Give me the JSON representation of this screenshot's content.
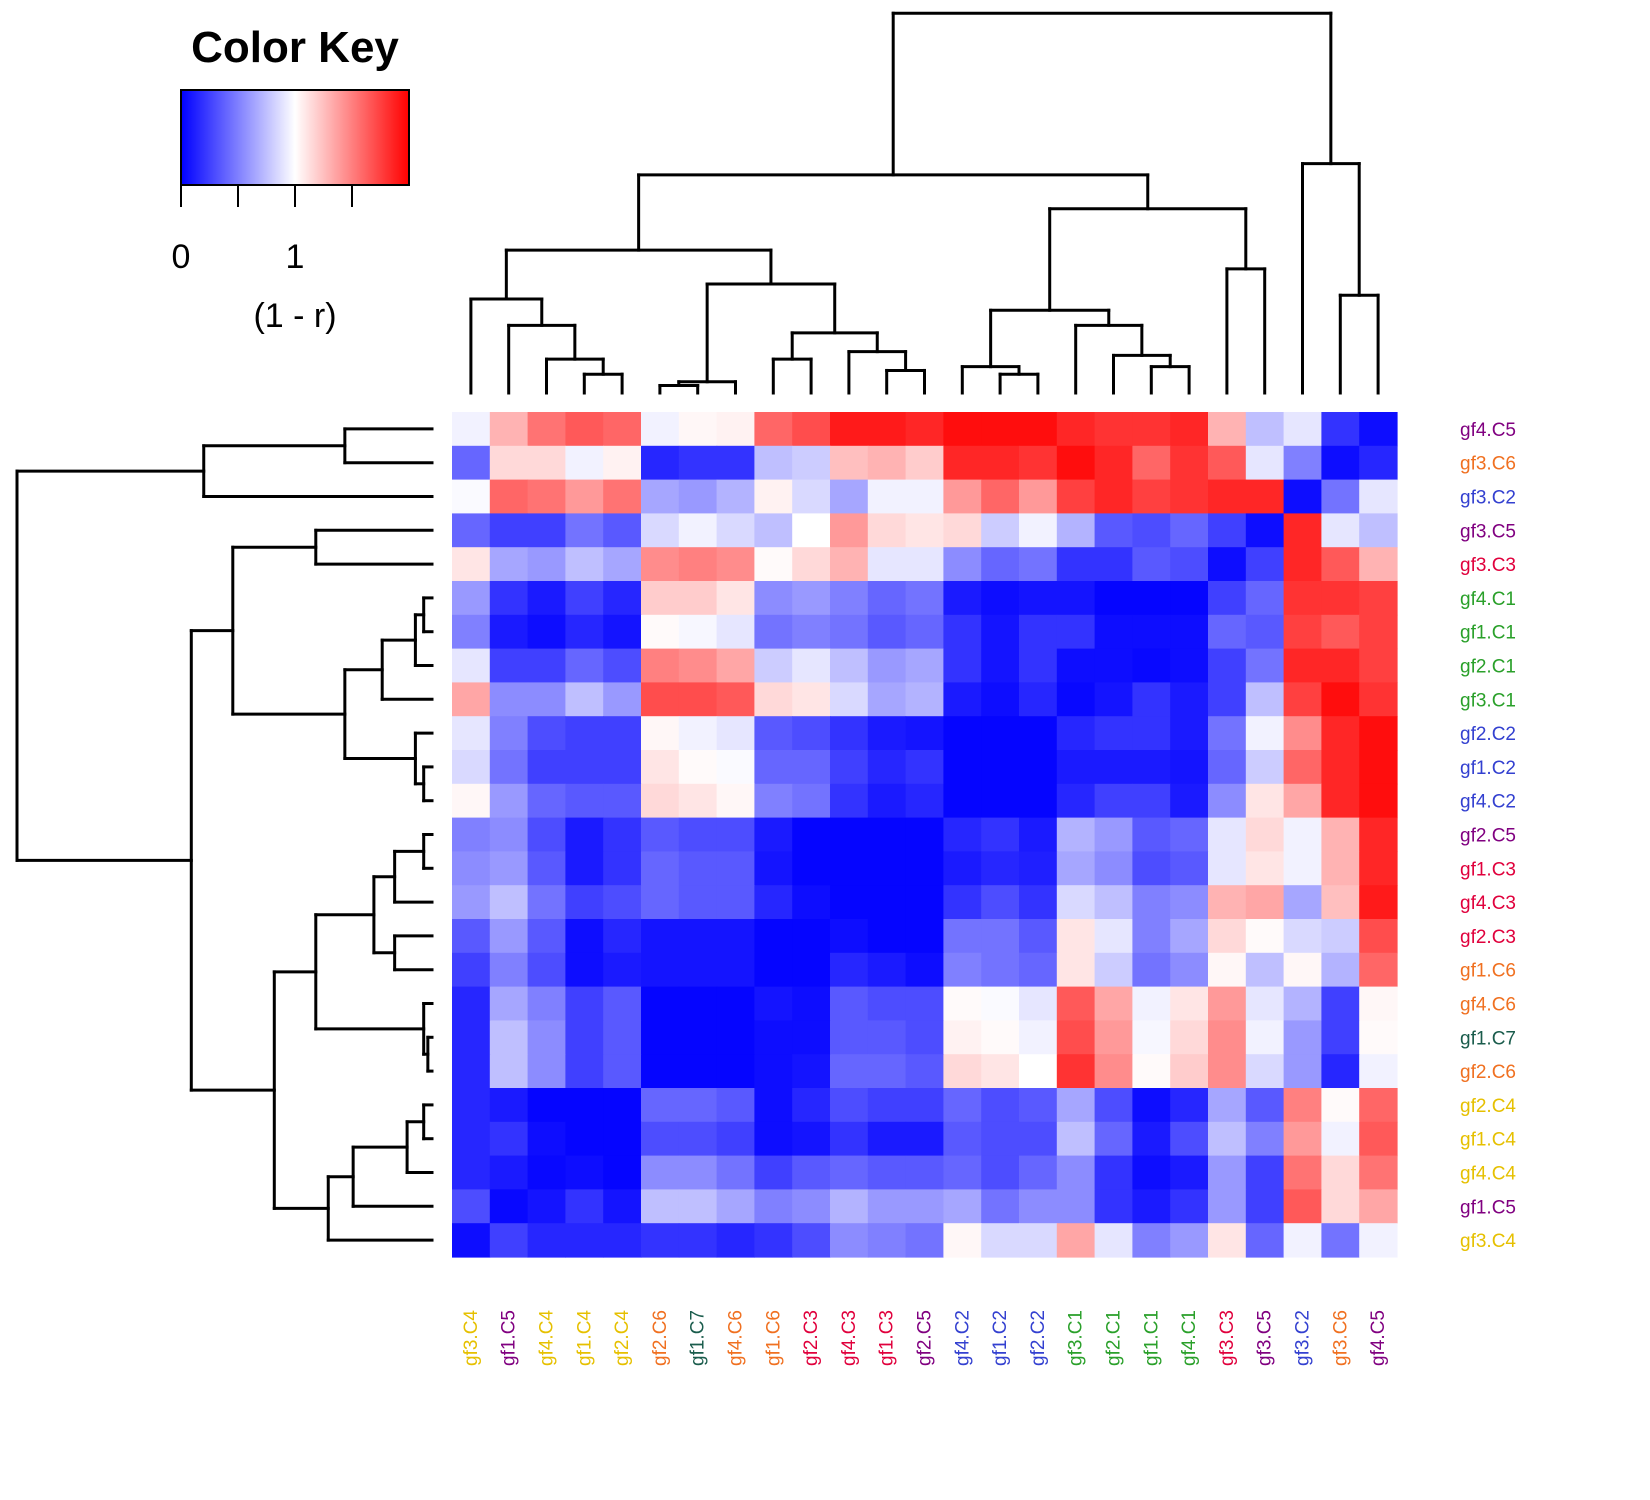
{
  "chart_data": {
    "type": "heatmap",
    "title": "",
    "color_key": {
      "title": "Color Key",
      "label": "(1 - r)",
      "tick_labels": [
        "0",
        "1"
      ],
      "range": [
        0,
        2
      ],
      "colors": [
        "#0000ff",
        "#ffffff",
        "#ff0000"
      ],
      "tick_values": [
        0,
        0.5,
        1,
        1.5
      ]
    },
    "rows": [
      "gf4.C5",
      "gf3.C6",
      "gf3.C2",
      "gf3.C5",
      "gf3.C3",
      "gf4.C1",
      "gf1.C1",
      "gf2.C1",
      "gf3.C1",
      "gf2.C2",
      "gf1.C2",
      "gf4.C2",
      "gf2.C5",
      "gf1.C3",
      "gf4.C3",
      "gf2.C3",
      "gf1.C6",
      "gf4.C6",
      "gf1.C7",
      "gf2.C6",
      "gf2.C4",
      "gf1.C4",
      "gf4.C4",
      "gf1.C5",
      "gf3.C4"
    ],
    "columns": [
      "gf3.C4",
      "gf1.C5",
      "gf4.C4",
      "gf1.C4",
      "gf2.C4",
      "gf2.C6",
      "gf1.C7",
      "gf4.C6",
      "gf1.C6",
      "gf2.C3",
      "gf4.C3",
      "gf1.C3",
      "gf2.C5",
      "gf4.C2",
      "gf1.C2",
      "gf2.C2",
      "gf3.C1",
      "gf2.C1",
      "gf1.C1",
      "gf4.C1",
      "gf3.C3",
      "gf3.C5",
      "gf3.C2",
      "gf3.C6",
      "gf4.C5"
    ],
    "label_colors": {
      "gf4.C5": "#800080",
      "gf3.C6": "#f07020",
      "gf3.C2": "#3340d0",
      "gf3.C5": "#800080",
      "gf3.C3": "#e0003c",
      "gf4.C1": "#2aa02a",
      "gf1.C1": "#2aa02a",
      "gf2.C1": "#2aa02a",
      "gf3.C1": "#2aa02a",
      "gf2.C2": "#3340d0",
      "gf1.C2": "#3340d0",
      "gf4.C2": "#3340d0",
      "gf2.C5": "#800080",
      "gf1.C3": "#e0003c",
      "gf4.C3": "#e0003c",
      "gf2.C3": "#e0003c",
      "gf1.C6": "#f07020",
      "gf4.C6": "#f07020",
      "gf1.C7": "#1a5c4c",
      "gf2.C6": "#f07020",
      "gf2.C4": "#e6c000",
      "gf1.C4": "#e6c000",
      "gf4.C4": "#e6c000",
      "gf1.C5": "#800080",
      "gf3.C4": "#e6c000"
    },
    "values": [
      [
        0.95,
        1.3,
        1.55,
        1.65,
        1.6,
        0.95,
        1.03,
        1.05,
        1.6,
        1.7,
        1.9,
        1.9,
        1.85,
        1.95,
        1.95,
        1.95,
        1.85,
        1.8,
        1.8,
        1.85,
        1.3,
        0.75,
        0.9,
        0.2,
        0.05
      ],
      [
        0.4,
        1.15,
        1.15,
        0.95,
        1.05,
        0.15,
        0.2,
        0.2,
        0.75,
        0.8,
        1.25,
        1.3,
        1.2,
        1.85,
        1.85,
        1.8,
        1.95,
        1.85,
        1.6,
        1.8,
        1.65,
        0.9,
        0.5,
        0.05,
        0.15
      ],
      [
        0.98,
        1.6,
        1.55,
        1.4,
        1.55,
        0.65,
        0.6,
        0.7,
        1.05,
        0.85,
        0.65,
        0.95,
        0.95,
        1.4,
        1.6,
        1.4,
        1.75,
        1.85,
        1.75,
        1.8,
        1.85,
        1.85,
        0.05,
        0.45,
        0.9
      ],
      [
        0.4,
        0.25,
        0.25,
        0.45,
        0.35,
        0.85,
        0.95,
        0.85,
        0.75,
        1.0,
        1.4,
        1.15,
        1.1,
        1.15,
        0.8,
        0.95,
        0.7,
        0.35,
        0.3,
        0.4,
        0.25,
        0.05,
        1.85,
        0.9,
        0.75
      ],
      [
        1.1,
        0.65,
        0.6,
        0.75,
        0.65,
        1.45,
        1.5,
        1.45,
        1.02,
        1.15,
        1.3,
        0.9,
        0.9,
        0.55,
        0.4,
        0.45,
        0.2,
        0.2,
        0.35,
        0.3,
        0.05,
        0.25,
        1.85,
        1.65,
        1.3
      ],
      [
        0.6,
        0.2,
        0.1,
        0.25,
        0.15,
        1.2,
        1.2,
        1.1,
        0.55,
        0.6,
        0.5,
        0.4,
        0.45,
        0.1,
        0.05,
        0.08,
        0.08,
        0.02,
        0.02,
        0.02,
        0.25,
        0.4,
        1.8,
        1.8,
        1.75
      ],
      [
        0.5,
        0.1,
        0.05,
        0.15,
        0.08,
        1.02,
        0.97,
        0.9,
        0.45,
        0.5,
        0.45,
        0.35,
        0.4,
        0.2,
        0.08,
        0.2,
        0.2,
        0.05,
        0.05,
        0.05,
        0.4,
        0.35,
        1.75,
        1.65,
        1.75
      ],
      [
        0.9,
        0.25,
        0.25,
        0.4,
        0.3,
        1.5,
        1.45,
        1.35,
        0.8,
        0.9,
        0.75,
        0.6,
        0.65,
        0.2,
        0.08,
        0.2,
        0.05,
        0.05,
        0.03,
        0.05,
        0.25,
        0.45,
        1.85,
        1.85,
        1.75
      ],
      [
        1.35,
        0.55,
        0.55,
        0.75,
        0.6,
        1.7,
        1.7,
        1.65,
        1.15,
        1.1,
        0.85,
        0.65,
        0.7,
        0.1,
        0.05,
        0.15,
        0.03,
        0.08,
        0.2,
        0.1,
        0.25,
        0.75,
        1.75,
        1.95,
        1.8
      ],
      [
        0.9,
        0.5,
        0.3,
        0.25,
        0.25,
        1.03,
        0.95,
        0.9,
        0.35,
        0.3,
        0.2,
        0.1,
        0.08,
        0.02,
        0.02,
        0.02,
        0.15,
        0.2,
        0.2,
        0.1,
        0.45,
        0.95,
        1.45,
        1.85,
        1.95
      ],
      [
        0.85,
        0.45,
        0.25,
        0.25,
        0.25,
        1.1,
        1.02,
        0.98,
        0.4,
        0.4,
        0.25,
        0.15,
        0.2,
        0.02,
        0.02,
        0.02,
        0.1,
        0.1,
        0.1,
        0.08,
        0.4,
        0.8,
        1.6,
        1.85,
        1.95
      ],
      [
        1.03,
        0.6,
        0.4,
        0.35,
        0.35,
        1.15,
        1.1,
        1.03,
        0.5,
        0.45,
        0.2,
        0.1,
        0.15,
        0.02,
        0.02,
        0.02,
        0.15,
        0.25,
        0.25,
        0.1,
        0.55,
        1.1,
        1.35,
        1.85,
        1.95
      ],
      [
        0.5,
        0.55,
        0.3,
        0.1,
        0.2,
        0.35,
        0.3,
        0.3,
        0.1,
        0.02,
        0.02,
        0.02,
        0.02,
        0.15,
        0.2,
        0.1,
        0.7,
        0.6,
        0.35,
        0.4,
        0.9,
        1.15,
        0.95,
        1.3,
        1.85
      ],
      [
        0.55,
        0.6,
        0.35,
        0.1,
        0.2,
        0.4,
        0.35,
        0.35,
        0.08,
        0.02,
        0.02,
        0.02,
        0.02,
        0.1,
        0.15,
        0.12,
        0.65,
        0.55,
        0.3,
        0.35,
        0.9,
        1.1,
        0.95,
        1.3,
        1.85
      ],
      [
        0.6,
        0.75,
        0.45,
        0.25,
        0.3,
        0.4,
        0.35,
        0.35,
        0.15,
        0.05,
        0.02,
        0.02,
        0.02,
        0.2,
        0.3,
        0.2,
        0.85,
        0.75,
        0.5,
        0.55,
        1.3,
        1.35,
        0.65,
        1.25,
        1.9
      ],
      [
        0.35,
        0.6,
        0.35,
        0.05,
        0.15,
        0.08,
        0.08,
        0.08,
        0.02,
        0.02,
        0.05,
        0.02,
        0.02,
        0.45,
        0.45,
        0.35,
        1.1,
        0.9,
        0.5,
        0.65,
        1.15,
        1.02,
        0.85,
        0.8,
        1.7
      ],
      [
        0.25,
        0.5,
        0.3,
        0.05,
        0.1,
        0.08,
        0.08,
        0.08,
        0.02,
        0.02,
        0.15,
        0.1,
        0.05,
        0.5,
        0.45,
        0.4,
        1.1,
        0.8,
        0.45,
        0.55,
        1.03,
        0.75,
        1.03,
        0.7,
        1.6
      ],
      [
        0.15,
        0.65,
        0.5,
        0.25,
        0.35,
        0.02,
        0.02,
        0.02,
        0.08,
        0.05,
        0.35,
        0.3,
        0.3,
        1.02,
        0.98,
        0.9,
        1.65,
        1.35,
        0.95,
        1.1,
        1.4,
        0.9,
        0.7,
        0.25,
        1.03
      ],
      [
        0.15,
        0.75,
        0.55,
        0.25,
        0.35,
        0.02,
        0.02,
        0.02,
        0.05,
        0.05,
        0.35,
        0.35,
        0.3,
        1.05,
        1.02,
        0.95,
        1.7,
        1.4,
        0.97,
        1.15,
        1.45,
        0.95,
        0.6,
        0.25,
        1.02
      ],
      [
        0.15,
        0.75,
        0.55,
        0.25,
        0.35,
        0.02,
        0.02,
        0.02,
        0.05,
        0.08,
        0.4,
        0.4,
        0.35,
        1.15,
        1.1,
        1.0,
        1.8,
        1.45,
        1.02,
        1.2,
        1.45,
        0.85,
        0.6,
        0.15,
        0.95
      ],
      [
        0.15,
        0.1,
        0.02,
        0.02,
        0.02,
        0.4,
        0.4,
        0.35,
        0.05,
        0.15,
        0.3,
        0.25,
        0.25,
        0.4,
        0.3,
        0.35,
        0.65,
        0.3,
        0.05,
        0.15,
        0.65,
        0.35,
        1.5,
        1.02,
        1.6
      ],
      [
        0.15,
        0.2,
        0.05,
        0.02,
        0.02,
        0.3,
        0.3,
        0.25,
        0.05,
        0.08,
        0.2,
        0.1,
        0.1,
        0.35,
        0.3,
        0.3,
        0.75,
        0.4,
        0.1,
        0.3,
        0.75,
        0.5,
        1.4,
        0.95,
        1.65
      ],
      [
        0.15,
        0.1,
        0.03,
        0.05,
        0.02,
        0.55,
        0.55,
        0.45,
        0.25,
        0.35,
        0.4,
        0.35,
        0.35,
        0.4,
        0.3,
        0.4,
        0.55,
        0.2,
        0.05,
        0.1,
        0.6,
        0.25,
        1.55,
        1.15,
        1.55
      ],
      [
        0.3,
        0.03,
        0.08,
        0.2,
        0.08,
        0.75,
        0.75,
        0.65,
        0.5,
        0.55,
        0.7,
        0.6,
        0.6,
        0.65,
        0.45,
        0.55,
        0.55,
        0.2,
        0.1,
        0.2,
        0.6,
        0.25,
        1.65,
        1.15,
        1.35
      ],
      [
        0.05,
        0.25,
        0.15,
        0.15,
        0.15,
        0.2,
        0.2,
        0.15,
        0.2,
        0.3,
        0.55,
        0.5,
        0.45,
        1.03,
        0.85,
        0.85,
        1.35,
        0.9,
        0.5,
        0.6,
        1.1,
        0.4,
        0.95,
        0.45,
        0.95
      ]
    ]
  }
}
